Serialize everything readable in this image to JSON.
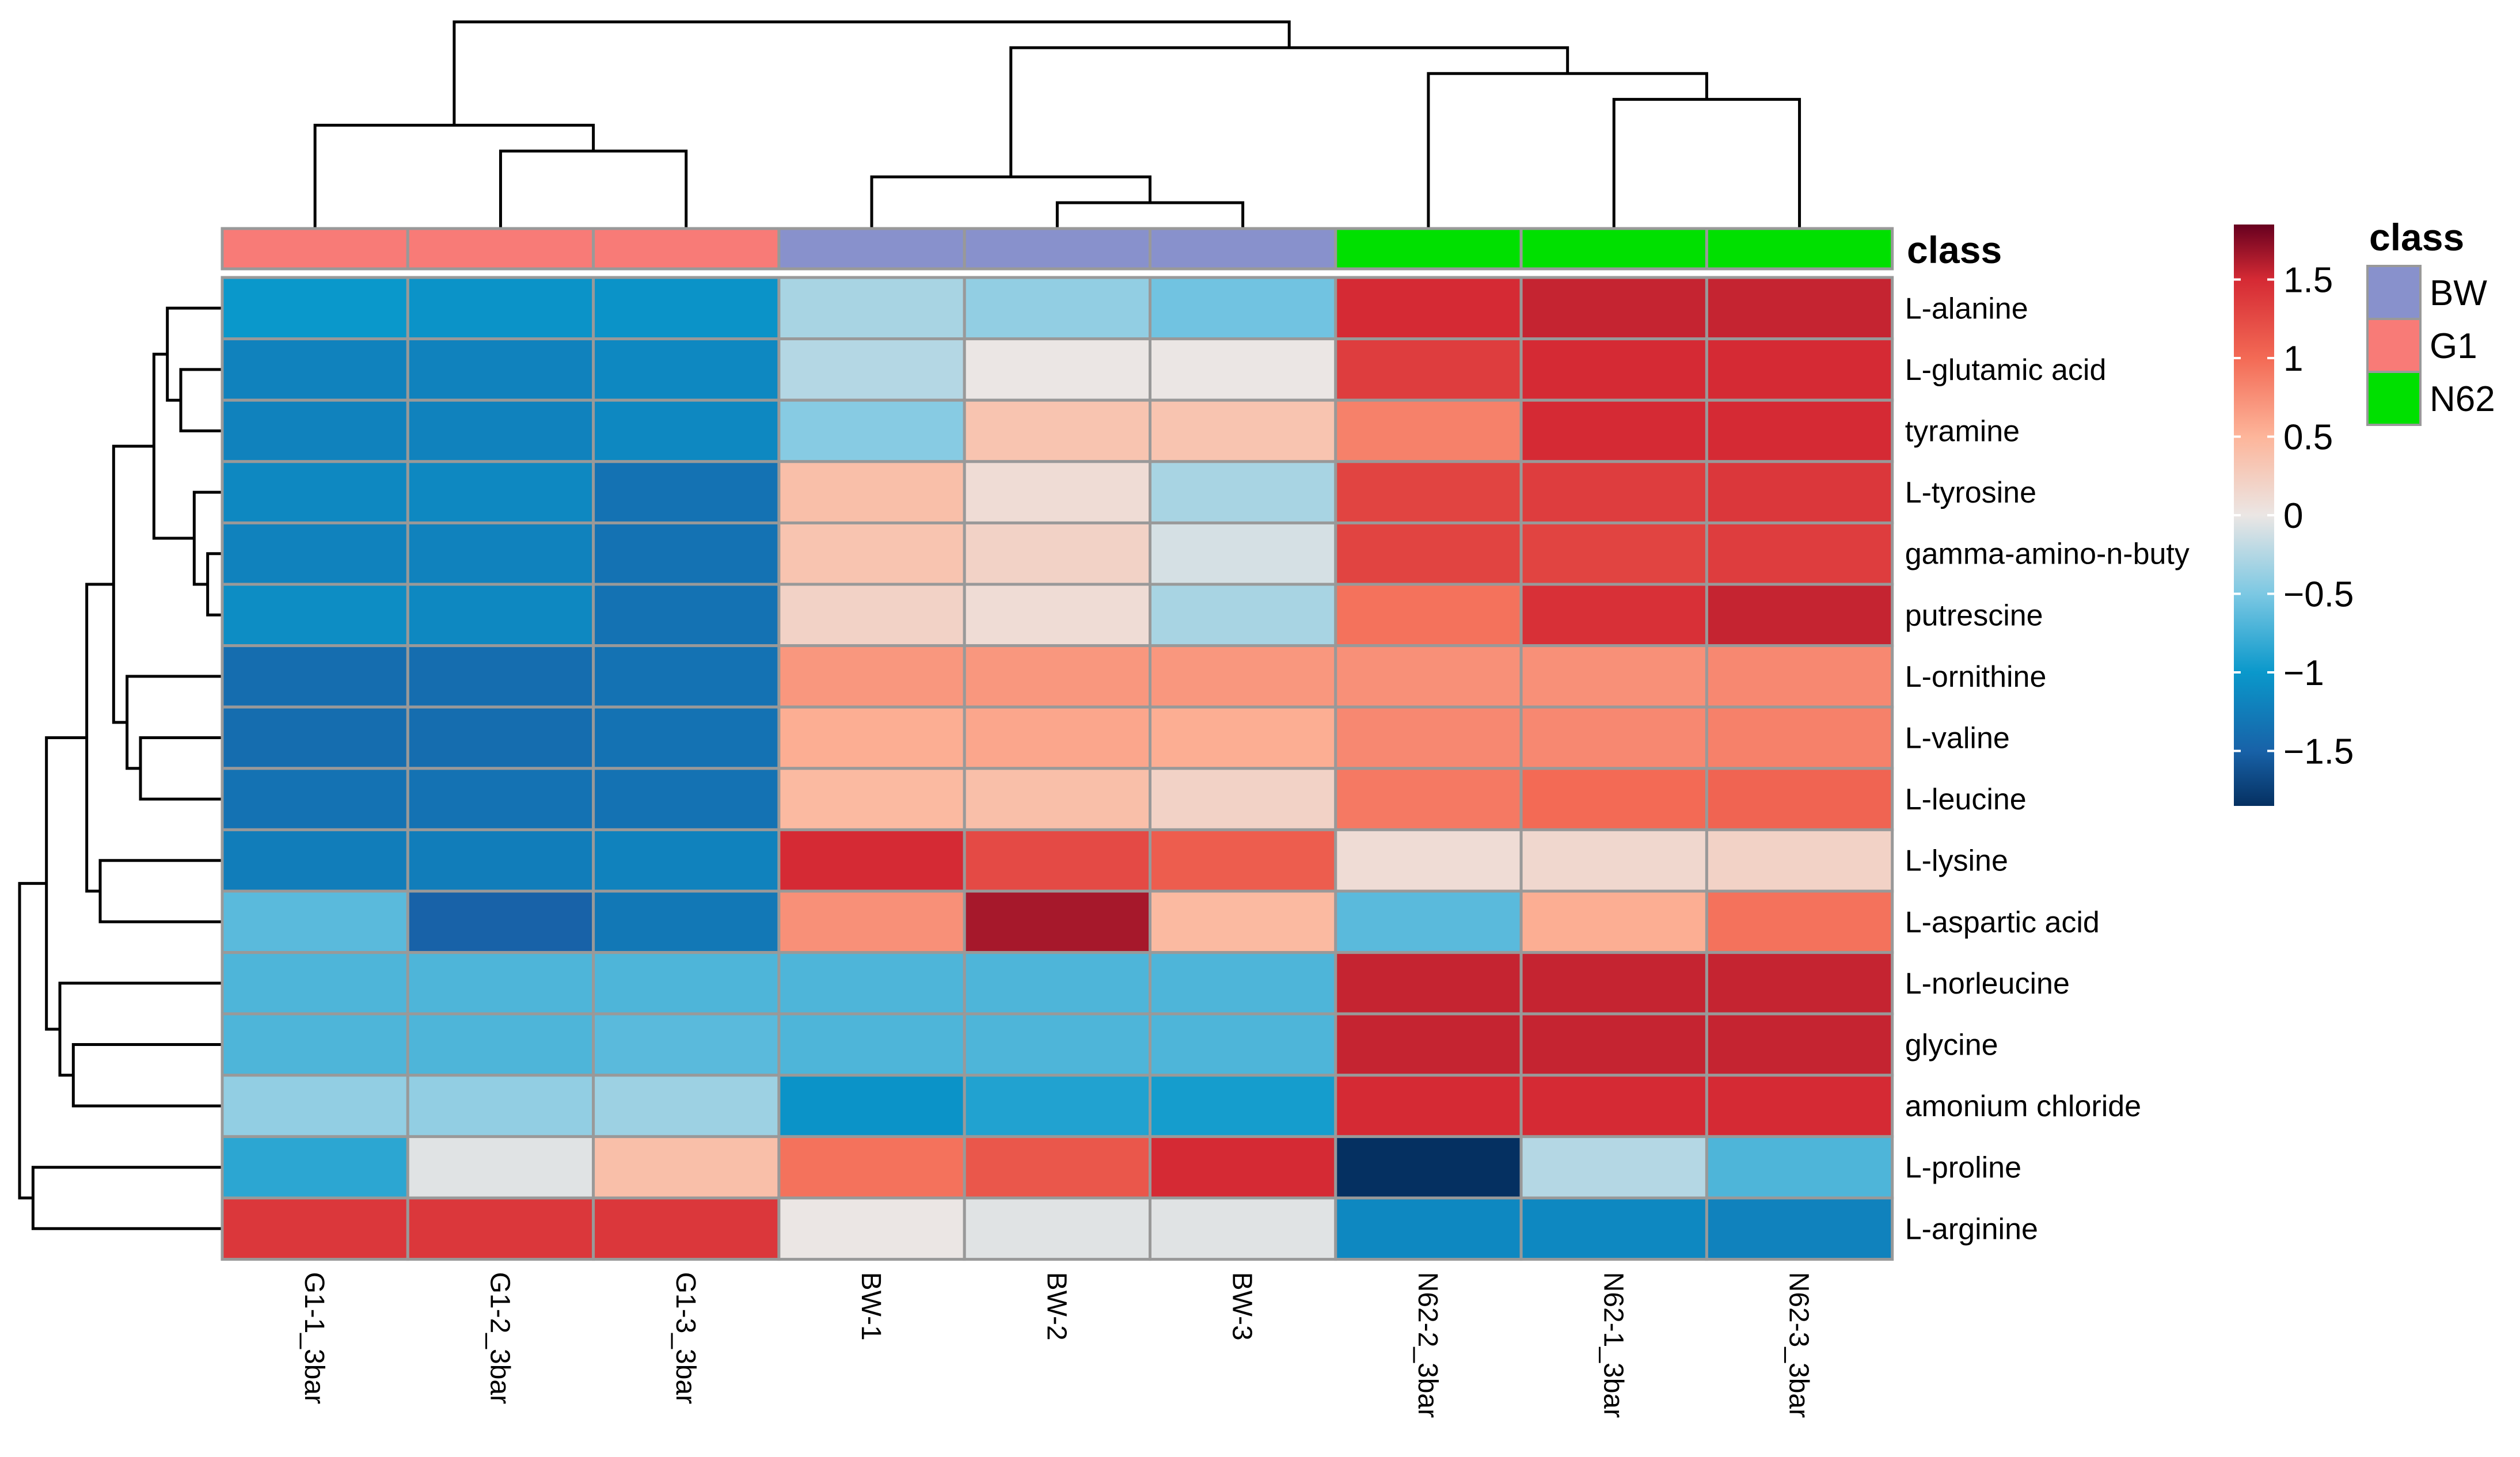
{
  "chart_data": {
    "type": "heatmap",
    "rows": [
      "L-alanine",
      "L-glutamic acid",
      "tyramine",
      "L-tyrosine",
      "gamma-amino-n-buty",
      "putrescine",
      "L-ornithine",
      "L-valine",
      "L-leucine",
      "L-lysine",
      "L-aspartic acid",
      "L-norleucine",
      "glycine",
      "amonium chloride",
      "L-proline",
      "L-arginine"
    ],
    "columns": [
      "G1-1_3bar",
      "G1-2_3bar",
      "G1-3_3bar",
      "BW-1",
      "BW-2",
      "BW-3",
      "N62-2_3bar",
      "N62-1_3bar",
      "N62-3_3bar"
    ],
    "column_class": [
      "G1",
      "G1",
      "G1",
      "BW",
      "BW",
      "BW",
      "N62",
      "N62",
      "N62"
    ],
    "values": [
      [
        -1.0,
        -1.05,
        -1.05,
        -0.3,
        -0.4,
        -0.55,
        1.5,
        1.55,
        1.55
      ],
      [
        -1.2,
        -1.2,
        -1.15,
        -0.25,
        0.0,
        0.0,
        1.35,
        1.5,
        1.5
      ],
      [
        -1.2,
        -1.2,
        -1.15,
        -0.45,
        0.35,
        0.35,
        0.85,
        1.5,
        1.5
      ],
      [
        -1.15,
        -1.15,
        -1.35,
        0.4,
        0.1,
        -0.3,
        1.3,
        1.35,
        1.4
      ],
      [
        -1.2,
        -1.2,
        -1.35,
        0.35,
        0.2,
        -0.1,
        1.3,
        1.3,
        1.35
      ],
      [
        -1.1,
        -1.15,
        -1.35,
        0.2,
        0.1,
        -0.3,
        0.95,
        1.45,
        1.55
      ],
      [
        -1.4,
        -1.4,
        -1.35,
        0.7,
        0.7,
        0.7,
        0.75,
        0.75,
        0.8
      ],
      [
        -1.4,
        -1.4,
        -1.35,
        0.55,
        0.6,
        0.55,
        0.8,
        0.8,
        0.85
      ],
      [
        -1.35,
        -1.35,
        -1.35,
        0.45,
        0.4,
        0.2,
        0.9,
        1.0,
        1.05
      ],
      [
        -1.25,
        -1.25,
        -1.2,
        1.5,
        1.25,
        1.1,
        0.1,
        0.15,
        0.2
      ],
      [
        -0.65,
        -1.5,
        -1.3,
        0.75,
        1.65,
        0.45,
        -0.65,
        0.55,
        0.95
      ],
      [
        -0.7,
        -0.7,
        -0.7,
        -0.7,
        -0.7,
        -0.7,
        1.55,
        1.55,
        1.55
      ],
      [
        -0.7,
        -0.7,
        -0.65,
        -0.7,
        -0.7,
        -0.7,
        1.55,
        1.55,
        1.55
      ],
      [
        -0.4,
        -0.4,
        -0.35,
        -1.05,
        -0.9,
        -0.95,
        1.5,
        1.5,
        1.5
      ],
      [
        -0.85,
        -0.05,
        0.4,
        0.95,
        1.15,
        1.5,
        -1.85,
        -0.25,
        -0.7
      ],
      [
        1.4,
        1.4,
        1.4,
        0.0,
        -0.05,
        -0.05,
        -1.15,
        -1.15,
        -1.2
      ]
    ],
    "color_scale": {
      "min": -1.85,
      "max": 1.85,
      "stops": [
        {
          "v": -1.85,
          "c": "#053061"
        },
        {
          "v": -1.5,
          "c": "#1862a8"
        },
        {
          "v": -1.0,
          "c": "#0a98cb"
        },
        {
          "v": -0.5,
          "c": "#7cc8e3"
        },
        {
          "v": 0.0,
          "c": "#ebe6e4"
        },
        {
          "v": 0.5,
          "c": "#fdb59a"
        },
        {
          "v": 1.0,
          "c": "#f36a55"
        },
        {
          "v": 1.5,
          "c": "#d52a34"
        },
        {
          "v": 1.85,
          "c": "#67001f"
        }
      ],
      "ticks": [
        {
          "v": 1.5,
          "label": "1.5"
        },
        {
          "v": 1.0,
          "label": "1"
        },
        {
          "v": 0.5,
          "label": "0.5"
        },
        {
          "v": 0.0,
          "label": "0"
        },
        {
          "v": -0.5,
          "label": "−0.5"
        },
        {
          "v": -1.0,
          "label": "−1"
        },
        {
          "v": -1.5,
          "label": "−1.5"
        }
      ]
    },
    "annotation_title": "class",
    "legend": {
      "title": "class",
      "position": "right",
      "entries": [
        {
          "label": "BW",
          "color": "#8891cc"
        },
        {
          "label": "G1",
          "color": "#f87b77"
        },
        {
          "label": "N62",
          "color": "#00e000"
        }
      ]
    },
    "column_dendrogram": [
      [
        4,
        5
      ],
      [
        3,
        9
      ],
      [
        1,
        2
      ],
      [
        0,
        11
      ],
      [
        7,
        8
      ],
      [
        6,
        13
      ],
      [
        10,
        14
      ],
      [
        12,
        15
      ]
    ],
    "row_dendrogram": [
      [
        4,
        5
      ],
      [
        3,
        16
      ],
      [
        1,
        2
      ],
      [
        0,
        18
      ],
      [
        17,
        19
      ],
      [
        7,
        8
      ],
      [
        6,
        21
      ],
      [
        20,
        22
      ],
      [
        9,
        10
      ],
      [
        23,
        24
      ],
      [
        12,
        13
      ],
      [
        11,
        26
      ],
      [
        25,
        27
      ],
      [
        14,
        15
      ],
      [
        28,
        29
      ]
    ]
  }
}
